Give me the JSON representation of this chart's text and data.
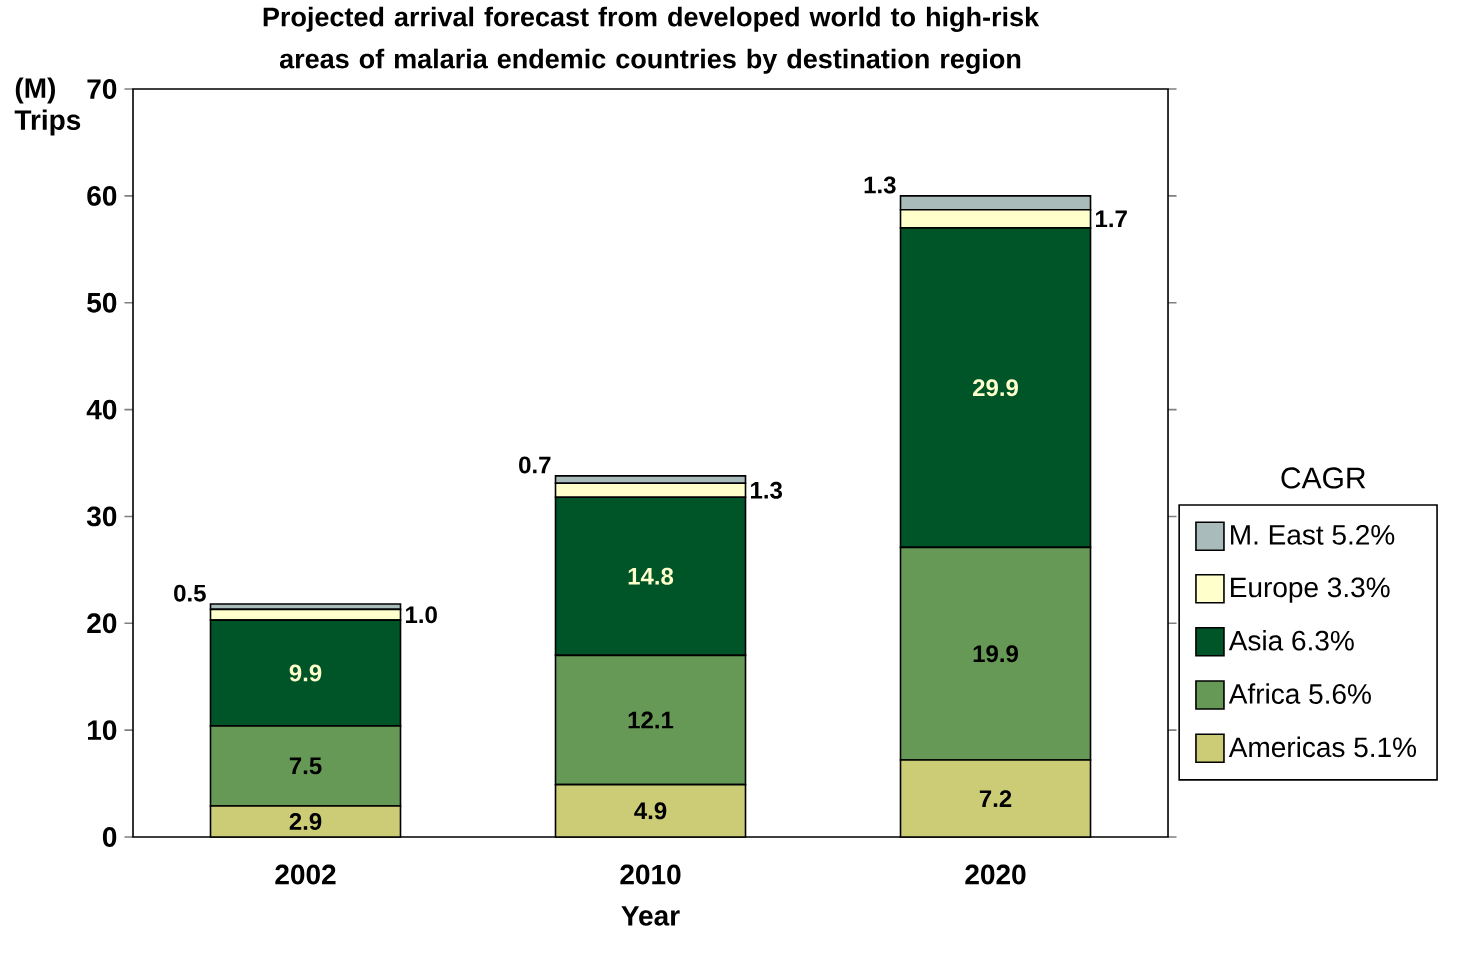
{
  "chart_data": {
    "type": "bar",
    "stacked": true,
    "title": "Projected arrival forecast from developed world to high-risk areas of malaria endemic countries by destination region",
    "xlabel": "Year",
    "ylabel": "(M) Trips",
    "legend_title": "CAGR",
    "categories": [
      "2002",
      "2010",
      "2020"
    ],
    "series": [
      {
        "name": "Americas 5.1%",
        "color": "#cccc77",
        "values": [
          2.9,
          4.9,
          7.2
        ],
        "value_labels": [
          "2.9",
          "4.9",
          "7.2"
        ]
      },
      {
        "name": "Africa 5.6%",
        "color": "#669955",
        "values": [
          7.5,
          12.1,
          19.9
        ],
        "value_labels": [
          "7.5",
          "12.1",
          "19.9"
        ]
      },
      {
        "name": "Asia 6.3%",
        "color": "#005528",
        "values": [
          9.9,
          14.8,
          29.9
        ],
        "value_labels": [
          "9.9",
          "14.8",
          "29.9"
        ]
      },
      {
        "name": "Europe 3.3%",
        "color": "#ffffcc",
        "values": [
          1.0,
          1.3,
          1.7
        ],
        "value_labels": [
          "1.0",
          "1.3",
          "1.7"
        ]
      },
      {
        "name": "M. East 5.2%",
        "color": "#aabbbb",
        "values": [
          0.5,
          0.7,
          1.3
        ],
        "value_labels": [
          "0.5",
          "0.7",
          "1.3"
        ]
      }
    ],
    "ylim": [
      0,
      70
    ],
    "yticks": [
      0,
      10,
      20,
      30,
      40,
      50,
      60,
      70
    ],
    "legend": "right",
    "grid": false
  }
}
